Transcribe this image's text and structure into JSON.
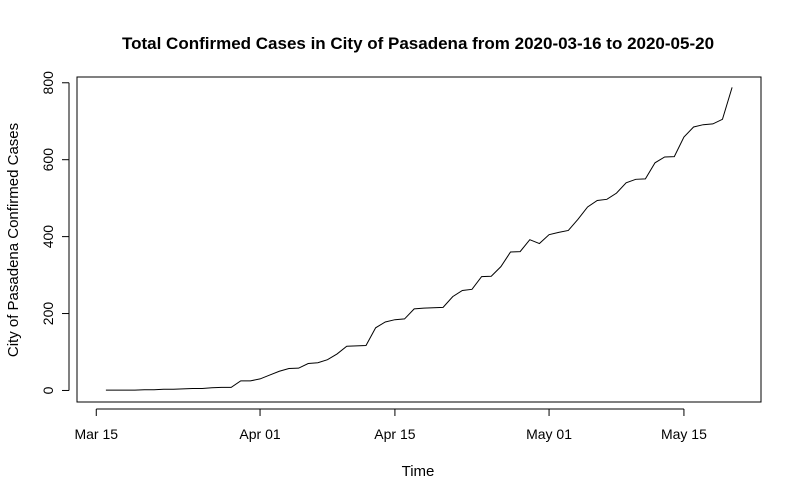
{
  "chart_data": {
    "type": "line",
    "title": "Total Confirmed Cases in City of Pasadena from 2020-03-16 to 2020-05-20",
    "xlabel": "Time",
    "ylabel": "City of Pasadena Confirmed Cases",
    "x_ticks": [
      "Mar 15",
      "Apr 01",
      "Apr 15",
      "May 01",
      "May 15"
    ],
    "y_ticks": [
      "0",
      "200",
      "400",
      "600",
      "800"
    ],
    "ylim": [
      -30,
      815
    ],
    "xlim": [
      "2020-03-13",
      "2020-05-23"
    ],
    "grid": false,
    "legend": "none",
    "line_color": "#000000",
    "x": [
      "2020-03-16",
      "2020-03-17",
      "2020-03-18",
      "2020-03-19",
      "2020-03-20",
      "2020-03-21",
      "2020-03-22",
      "2020-03-23",
      "2020-03-24",
      "2020-03-25",
      "2020-03-26",
      "2020-03-27",
      "2020-03-28",
      "2020-03-29",
      "2020-03-30",
      "2020-03-31",
      "2020-04-01",
      "2020-04-02",
      "2020-04-03",
      "2020-04-04",
      "2020-04-05",
      "2020-04-06",
      "2020-04-07",
      "2020-04-08",
      "2020-04-09",
      "2020-04-10",
      "2020-04-11",
      "2020-04-12",
      "2020-04-13",
      "2020-04-14",
      "2020-04-15",
      "2020-04-16",
      "2020-04-17",
      "2020-04-18",
      "2020-04-19",
      "2020-04-20",
      "2020-04-21",
      "2020-04-22",
      "2020-04-23",
      "2020-04-24",
      "2020-04-25",
      "2020-04-26",
      "2020-04-27",
      "2020-04-28",
      "2020-04-29",
      "2020-04-30",
      "2020-05-01",
      "2020-05-02",
      "2020-05-03",
      "2020-05-04",
      "2020-05-05",
      "2020-05-06",
      "2020-05-07",
      "2020-05-08",
      "2020-05-09",
      "2020-05-10",
      "2020-05-11",
      "2020-05-12",
      "2020-05-13",
      "2020-05-14",
      "2020-05-15",
      "2020-05-16",
      "2020-05-17",
      "2020-05-18",
      "2020-05-19",
      "2020-05-20"
    ],
    "values": [
      1,
      1,
      1,
      1,
      2,
      2,
      3,
      3,
      4,
      5,
      5,
      7,
      8,
      8,
      25,
      25,
      30,
      40,
      50,
      57,
      58,
      70,
      72,
      80,
      95,
      115,
      116,
      117,
      163,
      178,
      184,
      186,
      212,
      214,
      215,
      216,
      244,
      260,
      263,
      296,
      297,
      322,
      360,
      361,
      392,
      382,
      405,
      411,
      416,
      445,
      477,
      494,
      497,
      513,
      540,
      549,
      550,
      592,
      607,
      608,
      659,
      685,
      691,
      693,
      705,
      788
    ]
  }
}
